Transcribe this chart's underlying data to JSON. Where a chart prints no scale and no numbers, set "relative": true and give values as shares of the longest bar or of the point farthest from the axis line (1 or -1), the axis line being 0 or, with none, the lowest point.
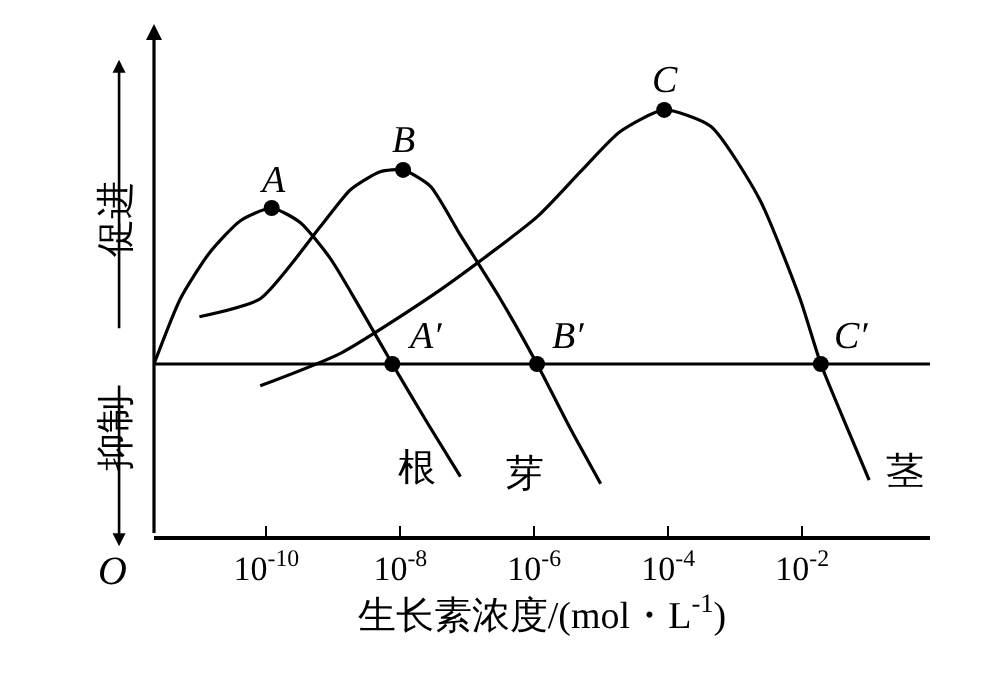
{
  "chart_data": {
    "type": "line",
    "relative": true,
    "log": "x",
    "xlabel": "生长素浓度/(mol・L$^{-1}$)",
    "xlim": [
      2.1e-12,
      0.81
    ],
    "xticks": [
      {
        "value": 1e-10,
        "label": "10$^{-10}$"
      },
      {
        "value": 1e-08,
        "label": "10$^{-8}$"
      },
      {
        "value": 1e-06,
        "label": "10$^{-6}$"
      },
      {
        "value": 0.0001,
        "label": "10$^{-4}$"
      },
      {
        "value": 0.01,
        "label": "10$^{-2}$"
      }
    ],
    "legend": false,
    "marker": "none",
    "line_style": "solid",
    "series": [
      {
        "name": "根",
        "color": "#000000",
        "x": [
          2.1e-12,
          5.2e-12,
          1.4e-11,
          4.1e-11,
          1.2e-10,
          3.2e-10,
          9.1e-10,
          2.5e-09,
          7.6e-09,
          2.5e-08,
          7.9e-08
        ],
        "values": [
          0,
          0.257,
          0.436,
          0.564,
          0.614,
          0.557,
          0.414,
          0.221,
          0,
          -0.229,
          -0.443
        ]
      },
      {
        "name": "芽",
        "color": "#000000",
        "x": [
          1e-11,
          8.1e-11,
          6.5e-10,
          1.8e-09,
          5e-09,
          1.1e-08,
          2.8e-08,
          7.9e-08,
          3.1e-07,
          1.1e-06,
          3.5e-06,
          9.8e-06
        ],
        "values": [
          0.186,
          0.257,
          0.543,
          0.686,
          0.757,
          0.764,
          0.7,
          0.507,
          0.257,
          0,
          -0.257,
          -0.471
        ]
      },
      {
        "name": "茎",
        "color": "#000000",
        "x": [
          8.1e-11,
          1.3e-09,
          4e-08,
          1.1e-06,
          4.9e-06,
          1.9e-05,
          8.7e-05,
          0.00043,
          0.0023,
          0.0093,
          0.019,
          0.052,
          0.1
        ],
        "values": [
          -0.086,
          0.043,
          0.293,
          0.579,
          0.757,
          0.914,
          1,
          0.936,
          0.65,
          0.257,
          0,
          -0.279,
          -0.457
        ]
      }
    ],
    "annotations": [
      "促进",
      "抑制",
      "O",
      {
        "text": "A",
        "x": 1.2e-10,
        "y": 0.614
      },
      {
        "text": "B",
        "x": 1.1e-08,
        "y": 0.764
      },
      {
        "text": "C",
        "x": 8.7e-05,
        "y": 1
      },
      {
        "text": "A′",
        "x": 7.6e-09,
        "y": 0
      },
      {
        "text": "B′",
        "x": 1.1e-06,
        "y": 0
      },
      {
        "text": "C′",
        "x": 0.019,
        "y": 0
      }
    ]
  }
}
